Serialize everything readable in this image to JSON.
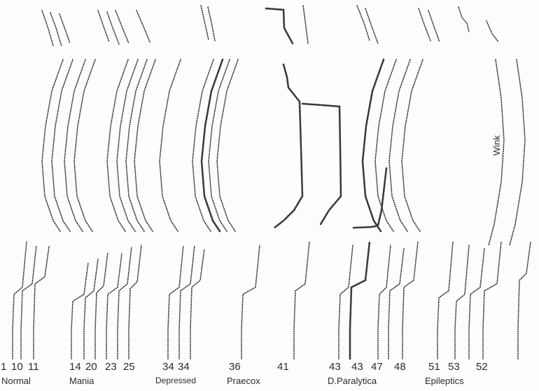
{
  "figure": {
    "trace_numbers": [
      "1",
      "10",
      "11",
      "14",
      "20",
      "23",
      "25",
      "34",
      "34",
      "36",
      "41",
      "43",
      "43",
      "47",
      "48",
      "51",
      "53",
      "52"
    ],
    "groups": [
      "Normal",
      "Mania",
      "Depressed",
      "Praecox",
      "D.Paralytica",
      "Epileptics"
    ],
    "annotation_wink": "Wink",
    "ink_color": "#3a3a3a"
  }
}
